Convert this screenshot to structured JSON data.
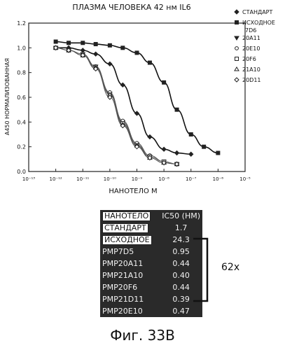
{
  "chart_data": {
    "type": "line",
    "title": "ПЛАЗМА ЧЕЛОВЕКА 42 нм IL6",
    "xlabel": "НАНОТЕЛО М",
    "ylabel": "A450 НОРМАЛИЗОВАННАЯ",
    "x_scale": "log",
    "xlim": [
      1e-13,
      1e-05
    ],
    "ylim": [
      0.0,
      1.2
    ],
    "x_tick_labels": [
      "10⁻¹³",
      "10⁻¹²",
      "10⁻¹¹",
      "10⁻¹⁰",
      "10⁻⁹",
      "10⁻⁸",
      "10⁻⁷",
      "10⁻⁶",
      "10⁻⁵"
    ],
    "y_tick_labels": [
      "0.0",
      "0.2",
      "0.4",
      "0.6",
      "0.8",
      "1.0",
      "1.2"
    ],
    "legend_position": "right",
    "series": [
      {
        "name": "СТАНДАРТ",
        "marker": "diamond",
        "x": [
          1e-12,
          3e-12,
          1e-11,
          3e-11,
          1e-10,
          3e-10,
          1e-09,
          3e-09,
          1e-08,
          3e-08,
          1e-07
        ],
        "y": [
          1.0,
          1.0,
          0.98,
          0.95,
          0.87,
          0.7,
          0.47,
          0.28,
          0.18,
          0.15,
          0.14
        ]
      },
      {
        "name": "ИСХОДНОЕ 7D6",
        "marker": "square",
        "x": [
          1e-12,
          3e-12,
          1e-11,
          3e-11,
          1e-10,
          3e-10,
          1e-09,
          3e-09,
          1e-08,
          3e-08,
          1e-07,
          3e-07,
          1e-06
        ],
        "y": [
          1.05,
          1.04,
          1.04,
          1.03,
          1.02,
          1.0,
          0.96,
          0.88,
          0.72,
          0.5,
          0.3,
          0.2,
          0.15
        ]
      },
      {
        "name": "20A11",
        "marker": "triangle-down",
        "x": [
          1e-12,
          3e-12,
          1e-11,
          3e-11,
          1e-10,
          3e-10,
          1e-09,
          3e-09,
          1e-08,
          3e-08
        ],
        "y": [
          1.0,
          0.98,
          0.95,
          0.85,
          0.63,
          0.4,
          0.22,
          0.12,
          0.08,
          0.06
        ]
      },
      {
        "name": "20E10",
        "marker": "circle",
        "x": [
          1e-12,
          3e-12,
          1e-11,
          3e-11,
          1e-10,
          3e-10,
          1e-09,
          3e-09,
          1e-08,
          3e-08
        ],
        "y": [
          1.0,
          0.98,
          0.95,
          0.85,
          0.64,
          0.41,
          0.23,
          0.13,
          0.08,
          0.06
        ]
      },
      {
        "name": "20F6",
        "marker": "square-open",
        "x": [
          1e-12,
          3e-12,
          1e-11,
          3e-11,
          1e-10,
          3e-10,
          1e-09,
          3e-09,
          1e-08,
          3e-08
        ],
        "y": [
          1.0,
          0.98,
          0.94,
          0.84,
          0.62,
          0.39,
          0.21,
          0.12,
          0.08,
          0.06
        ]
      },
      {
        "name": "21A10",
        "marker": "triangle-up",
        "x": [
          1e-12,
          3e-12,
          1e-11,
          3e-11,
          1e-10,
          3e-10,
          1e-09,
          3e-09,
          1e-08,
          3e-08
        ],
        "y": [
          1.0,
          0.98,
          0.94,
          0.84,
          0.62,
          0.38,
          0.21,
          0.11,
          0.07,
          0.06
        ]
      },
      {
        "name": "20D11",
        "marker": "diamond-open",
        "x": [
          1e-12,
          3e-12,
          1e-11,
          3e-11,
          1e-10,
          3e-10,
          1e-09,
          3e-09,
          1e-08,
          3e-08
        ],
        "y": [
          1.0,
          0.98,
          0.94,
          0.83,
          0.6,
          0.37,
          0.2,
          0.11,
          0.07,
          0.06
        ]
      }
    ]
  },
  "table": {
    "header": {
      "name": "НАНОТЕЛО",
      "value": "IC50 (HM)"
    },
    "rows": [
      {
        "name": "СТАНДАРТ",
        "value": "1.7",
        "style": "light"
      },
      {
        "name": "ИСХОДНОЕ",
        "value": "24.3",
        "style": "light"
      },
      {
        "name": "PMP7D5",
        "value": "0.95",
        "style": "dark"
      },
      {
        "name": "PMP20A11",
        "value": "0.44",
        "style": "dark"
      },
      {
        "name": "PMP21A10",
        "value": "0.40",
        "style": "dark"
      },
      {
        "name": "PMP20F6",
        "value": "0.44",
        "style": "dark"
      },
      {
        "name": "PMP21D11",
        "value": "0.39",
        "style": "dark"
      },
      {
        "name": "PMP20E10",
        "value": "0.47",
        "style": "dark"
      }
    ]
  },
  "fold_label": "62x",
  "figure_caption": "Фиг. 33B"
}
